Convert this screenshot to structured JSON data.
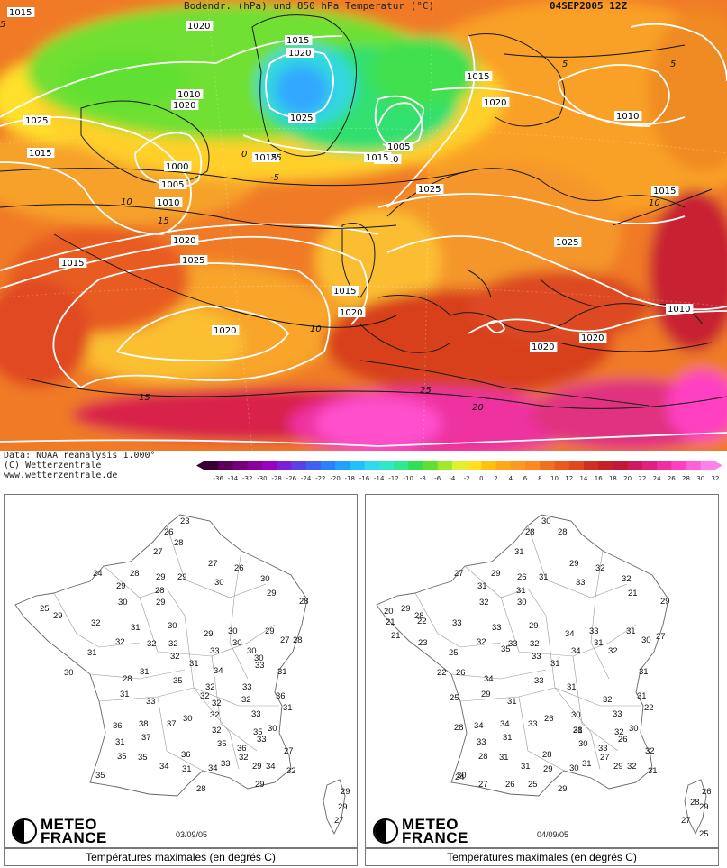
{
  "map": {
    "title": "Bodendr. (hPa) und 850 hPa Temperatur (°C)",
    "date": "04SEP2005 12Z",
    "pressure_labels": [
      "1015",
      "1020",
      "1015",
      "1020",
      "1010",
      "1025",
      "1020",
      "1000",
      "1005",
      "1010",
      "1020",
      "1015",
      "1025",
      "1015",
      "1020",
      "1015",
      "1010",
      "1005",
      "1025",
      "1015",
      "1010",
      "1025",
      "1015",
      "1020",
      "1020",
      "1025",
      "1020",
      "1010",
      "1020",
      "1015",
      "1015"
    ],
    "temp_labels": [
      "0",
      "5",
      "-5",
      "10",
      "15",
      "10",
      "15",
      "20",
      "25",
      "25",
      "5",
      "10",
      "5"
    ]
  },
  "credits": {
    "line1": "Data: NOAA reanalysis 1.000°",
    "line2": "(C) Wetterzentrale",
    "line3": "www.wetterzentrale.de"
  },
  "colorbar": {
    "ticks": [
      "-36",
      "-34",
      "-32",
      "-30",
      "-28",
      "-26",
      "-24",
      "-22",
      "-20",
      "-18",
      "-16",
      "-14",
      "-12",
      "-10",
      "-8",
      "-6",
      "-4",
      "-2",
      "0",
      "2",
      "4",
      "6",
      "8",
      "10",
      "12",
      "14",
      "16",
      "18",
      "20",
      "22",
      "24",
      "26",
      "28",
      "30",
      "32"
    ],
    "colors": [
      "#3a0036",
      "#5a0058",
      "#75007a",
      "#8a009a",
      "#9a00c0",
      "#7a20d8",
      "#5a40e8",
      "#4060f0",
      "#2a80ff",
      "#20a0ff",
      "#20c0ff",
      "#30d8f0",
      "#30e8c8",
      "#30e890",
      "#30e050",
      "#60e030",
      "#a0e830",
      "#e0f030",
      "#ffe020",
      "#ffc010",
      "#ffa818",
      "#ff9820",
      "#ff8820",
      "#f07020",
      "#e85a20",
      "#e04820",
      "#d03020",
      "#c82028",
      "#c01838",
      "#d01860",
      "#e02080",
      "#f030a0",
      "#ff40c0",
      "#ff60d8",
      "#ff80e8"
    ]
  },
  "panels": [
    {
      "date": "03/09/05",
      "logo": "METEO FRANCE",
      "caption": "Températures maximales (en degrés C)",
      "stations": [
        "23",
        "26",
        "28",
        "27",
        "27",
        "24",
        "28",
        "29",
        "29",
        "29",
        "28",
        "26",
        "30",
        "30",
        "30",
        "29",
        "25",
        "29",
        "29",
        "32",
        "31",
        "30",
        "29",
        "30",
        "29",
        "28",
        "27",
        "32",
        "32",
        "32",
        "28",
        "30",
        "33",
        "32",
        "31",
        "30",
        "31",
        "30",
        "31",
        "34",
        "33",
        "31",
        "30",
        "28",
        "35",
        "32",
        "33",
        "32",
        "31",
        "32",
        "36",
        "33",
        "33",
        "32",
        "31",
        "38",
        "37",
        "32",
        "30",
        "35",
        "36",
        "32",
        "30",
        "31",
        "36",
        "37",
        "36",
        "35",
        "33",
        "35",
        "34",
        "35",
        "34",
        "27",
        "35",
        "32",
        "31",
        "34",
        "32",
        "33",
        "28",
        "29",
        "29",
        "29",
        "29",
        "27"
      ]
    },
    {
      "date": "04/09/05",
      "logo": "METEO FRANCE",
      "caption": "Températures maximales (en degrés C)",
      "stations": [
        "30",
        "28",
        "28",
        "31",
        "29",
        "27",
        "29",
        "26",
        "31",
        "31",
        "31",
        "32",
        "33",
        "32",
        "32",
        "30",
        "29",
        "21",
        "28",
        "33",
        "33",
        "29",
        "20",
        "21",
        "22",
        "34",
        "33",
        "31",
        "29",
        "30",
        "27",
        "21",
        "23",
        "32",
        "33",
        "32",
        "31",
        "25",
        "35",
        "34",
        "33",
        "31",
        "32",
        "31",
        "22",
        "26",
        "34",
        "33",
        "31",
        "25",
        "29",
        "32",
        "31",
        "33",
        "31",
        "30",
        "22",
        "28",
        "34",
        "33",
        "28",
        "26",
        "32",
        "34",
        "31",
        "30",
        "33",
        "33",
        "31",
        "28",
        "30",
        "26",
        "28",
        "30",
        "31",
        "31",
        "32",
        "30",
        "27",
        "29",
        "32",
        "31",
        "31",
        "29",
        "29",
        "24",
        "27",
        "26",
        "25",
        "26",
        "28",
        "29",
        "27",
        "25"
      ]
    }
  ]
}
